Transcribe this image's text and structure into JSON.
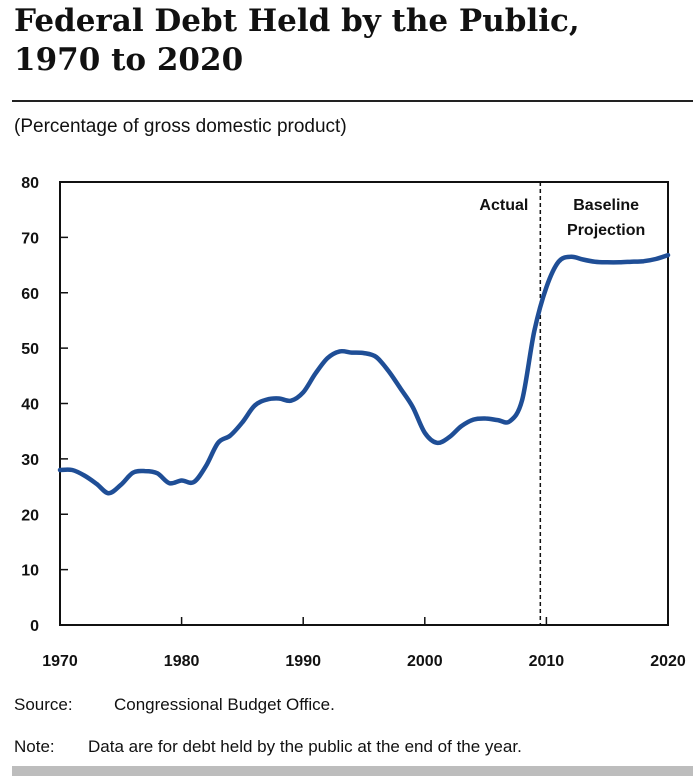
{
  "title_line1": "Federal Debt Held by the Public,",
  "title_line2": "1970 to 2020",
  "subtitle": "(Percentage of gross domestic product)",
  "source_label": "Source:",
  "source_text": "Congressional Budget Office.",
  "note_label": "Note:",
  "note_text": "Data are for debt held by the public at the end of the year.",
  "chart_data": {
    "type": "line",
    "title": "Federal Debt Held by the Public, 1970 to 2020",
    "ylabel": "Percentage of gross domestic product",
    "xlim": [
      1970,
      2020
    ],
    "ylim": [
      0,
      80
    ],
    "xticks": [
      1970,
      1980,
      1990,
      2000,
      2010,
      2020
    ],
    "yticks": [
      0,
      10,
      20,
      30,
      40,
      50,
      60,
      70,
      80
    ],
    "grid": false,
    "line_color": "#1f4e96",
    "divider": {
      "x": 2009.5,
      "left_label": "Actual",
      "right_label": [
        "Baseline",
        "Projection"
      ]
    },
    "series": [
      {
        "x": [
          1970,
          1971,
          1972,
          1973,
          1974,
          1975,
          1976,
          1977,
          1978,
          1979,
          1980,
          1981,
          1982,
          1983,
          1984,
          1985,
          1986,
          1987,
          1988,
          1989,
          1990,
          1991,
          1992,
          1993,
          1994,
          1995,
          1996,
          1997,
          1998,
          1999,
          2000,
          2001,
          2002,
          2003,
          2004,
          2005,
          2006,
          2007,
          2008,
          2009,
          2010,
          2011,
          2012,
          2013,
          2014,
          2015,
          2016,
          2017,
          2018,
          2019,
          2020
        ],
        "values": [
          28.0,
          28.0,
          27.0,
          25.5,
          23.8,
          25.3,
          27.5,
          27.8,
          27.4,
          25.6,
          26.1,
          25.8,
          28.7,
          32.9,
          34.2,
          36.6,
          39.6,
          40.7,
          40.9,
          40.5,
          42.0,
          45.4,
          48.2,
          49.4,
          49.2,
          49.1,
          48.4,
          45.9,
          42.7,
          39.4,
          34.7,
          32.9,
          33.9,
          35.9,
          37.1,
          37.3,
          37.0,
          36.8,
          40.6,
          53.0,
          61.0,
          65.6,
          66.5,
          66.0,
          65.6,
          65.5,
          65.5,
          65.6,
          65.7,
          66.1,
          66.8
        ]
      }
    ]
  }
}
